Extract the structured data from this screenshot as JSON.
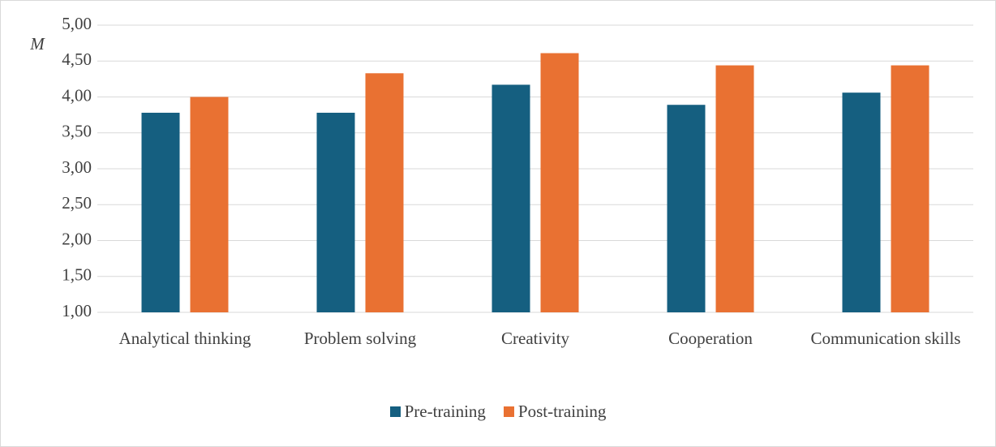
{
  "chart_data": {
    "type": "bar",
    "ylabel": "M",
    "categories": [
      "Analytical thinking",
      "Problem solving",
      "Creativity",
      "Cooperation",
      "Communication skills"
    ],
    "series": [
      {
        "name": "Pre-training",
        "color": "#155f80",
        "values": [
          3.78,
          3.78,
          4.17,
          3.89,
          4.06
        ]
      },
      {
        "name": "Post-training",
        "color": "#e97132",
        "values": [
          4.0,
          4.33,
          4.61,
          4.44,
          4.44
        ]
      }
    ],
    "ylim": [
      1,
      5
    ],
    "yticks": [
      {
        "value": 1,
        "label": "1,00"
      },
      {
        "value": 1.5,
        "label": "1,50"
      },
      {
        "value": 2,
        "label": "2,00"
      },
      {
        "value": 2.5,
        "label": "2,50"
      },
      {
        "value": 3,
        "label": "3,00"
      },
      {
        "value": 3.5,
        "label": "3,50"
      },
      {
        "value": 4,
        "label": "4,00"
      },
      {
        "value": 4.5,
        "label": "4,50"
      },
      {
        "value": 5,
        "label": "5,00"
      }
    ],
    "grid": true,
    "legend": "bottom"
  }
}
